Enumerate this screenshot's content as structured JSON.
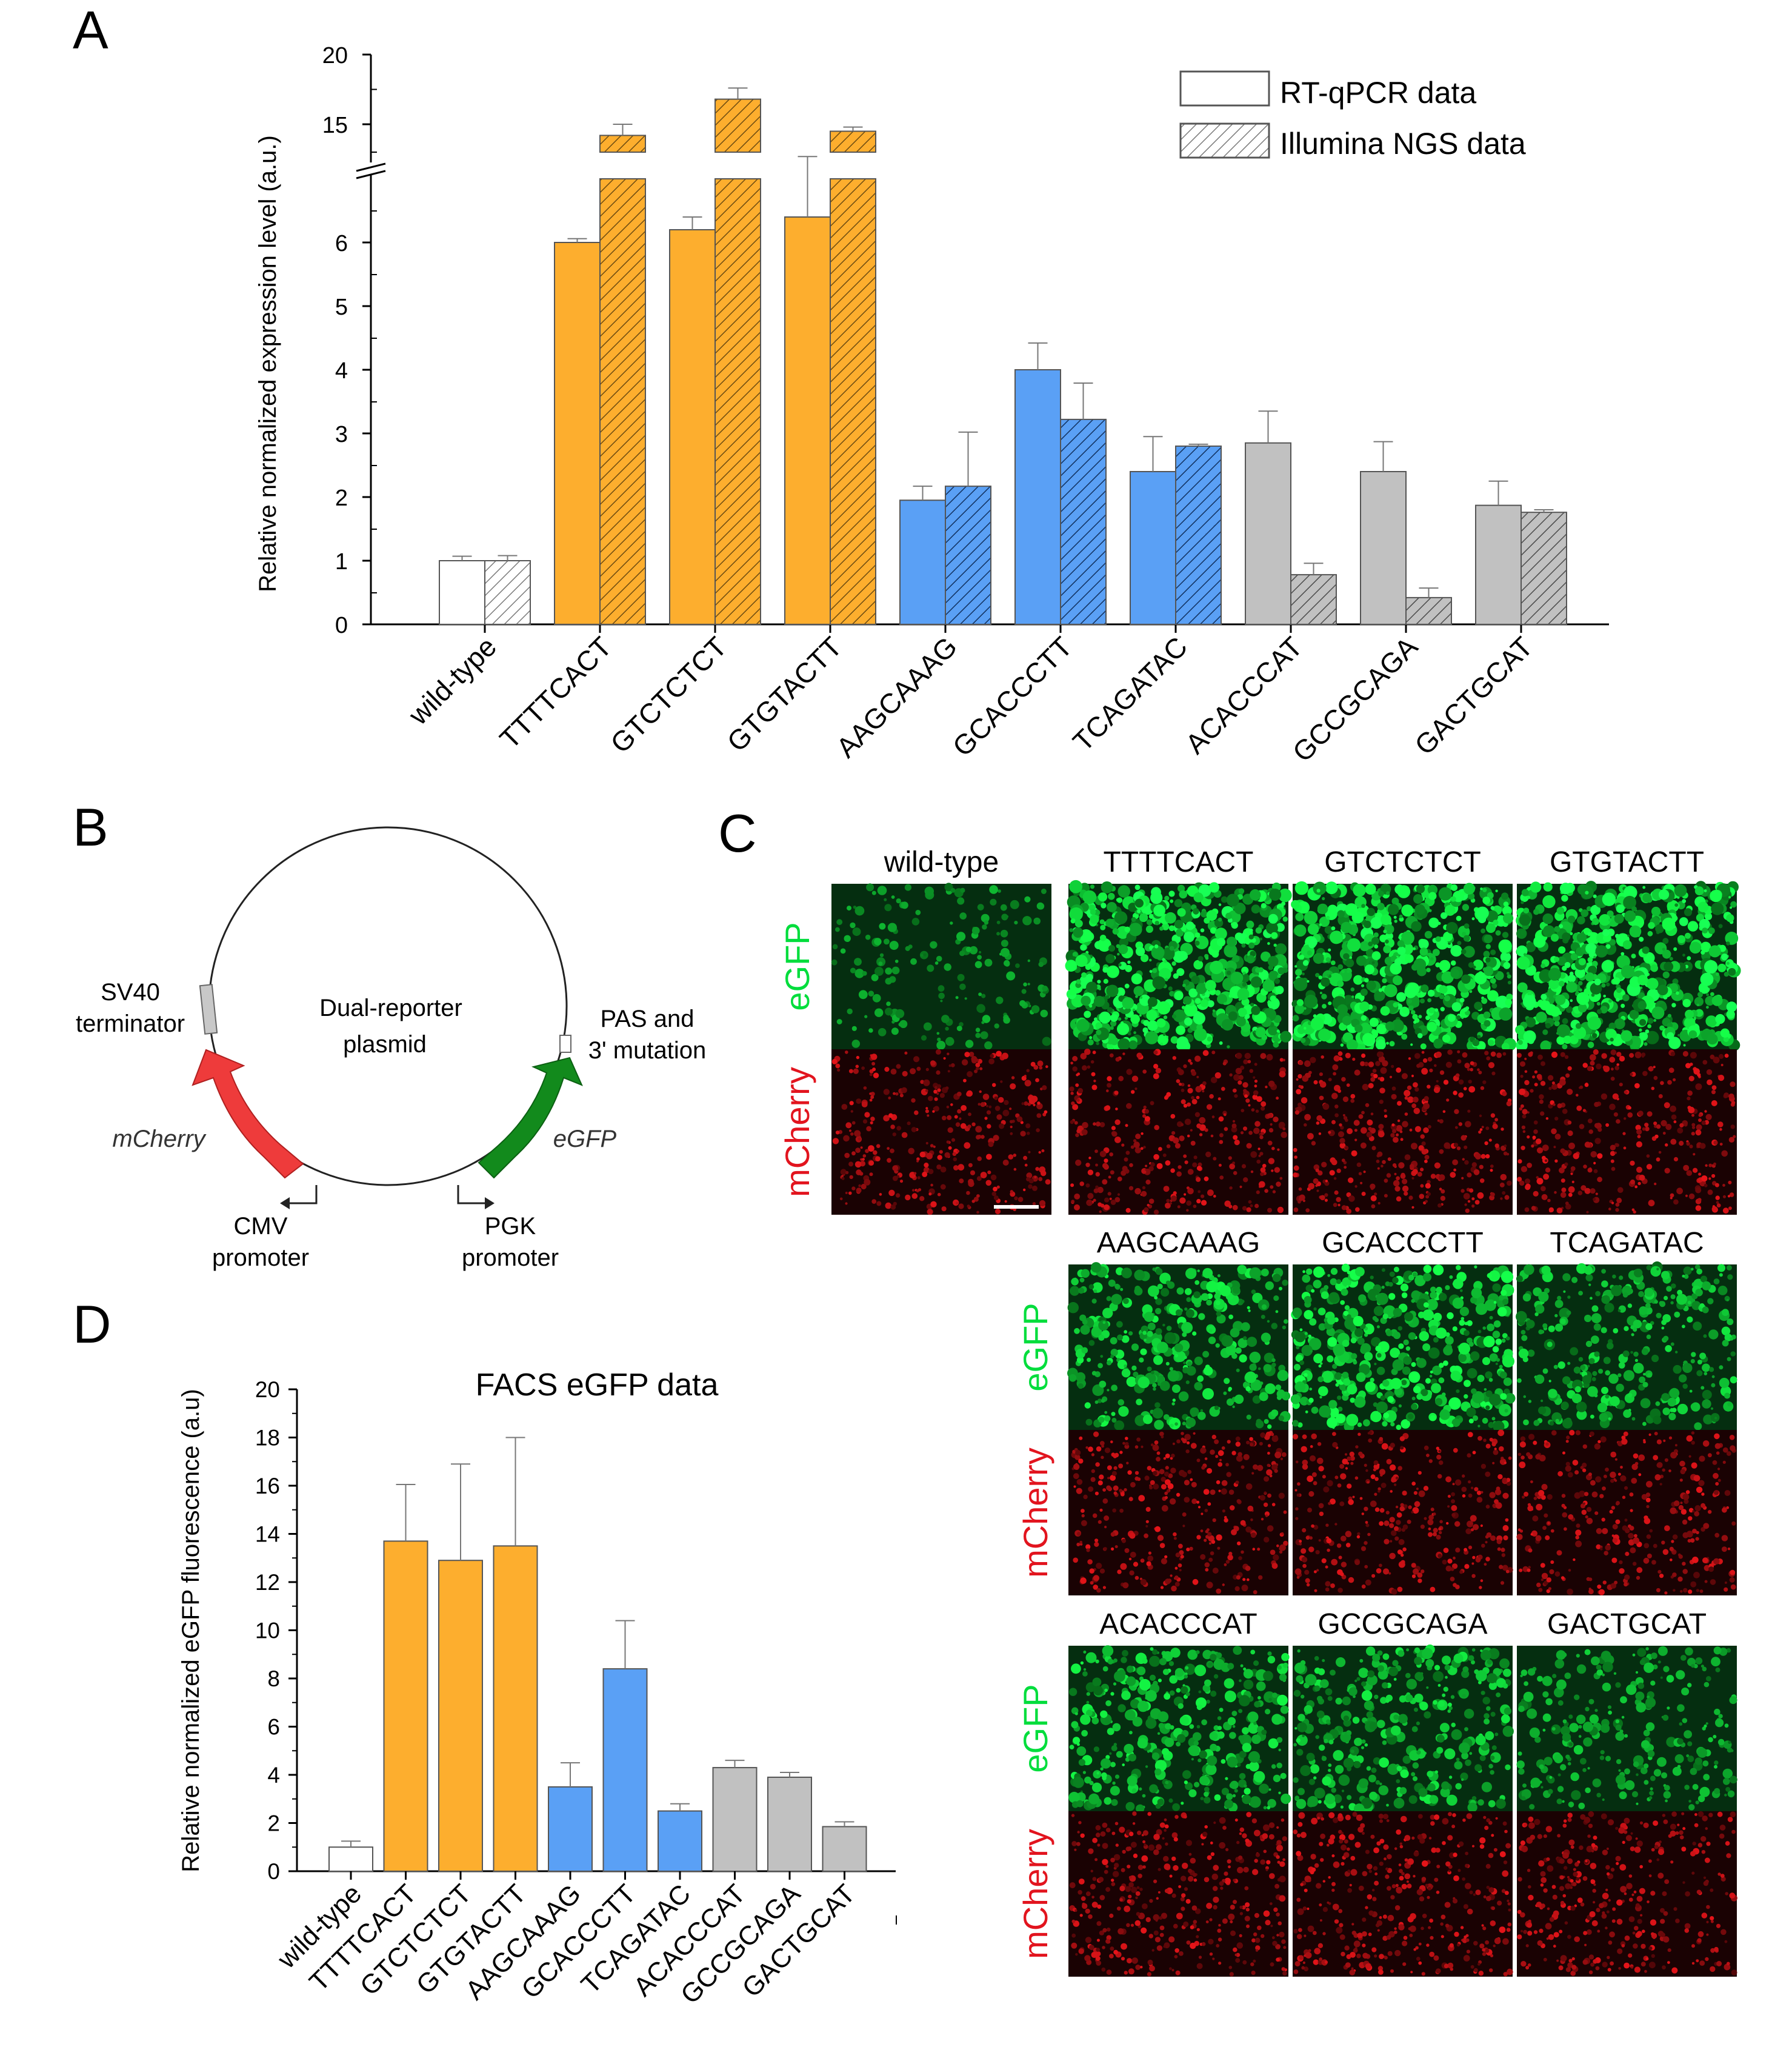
{
  "colors": {
    "wild": "#ffffff",
    "orange": "#fdae2e",
    "blue": "#5aa0f5",
    "gray": "#c1c1c1",
    "green_channel": "#00dd3c",
    "red_channel": "#e2141e",
    "plasmid_red": "#ee3b3b",
    "plasmid_green": "#128a1c"
  },
  "chart_data": [
    {
      "panel": "A",
      "type": "bar",
      "ylabel": "Relative normalized expression level (a.u.)",
      "axis_break": {
        "lower": [
          0,
          7
        ],
        "upper": [
          13,
          20
        ]
      },
      "ylim": [
        0,
        20
      ],
      "ticks_lower": [
        0,
        1,
        2,
        3,
        4,
        5,
        6
      ],
      "ticks_upper": [
        15,
        20
      ],
      "categories": [
        "wild-type",
        "TTTTCACT",
        "GTCTCTCT",
        "GTGTACTT",
        "AAGCAAAG",
        "GCACCCTT",
        "TCAGATAC",
        "ACACCCAT",
        "GCCGCAGA",
        "GACTGCAT"
      ],
      "category_colors": [
        "wild",
        "orange",
        "orange",
        "orange",
        "blue",
        "blue",
        "blue",
        "gray",
        "gray",
        "gray"
      ],
      "series": [
        {
          "name": "RT-qPCR data",
          "pattern": "solid",
          "values": [
            1.0,
            6.0,
            6.2,
            6.4,
            1.95,
            4.0,
            2.4,
            2.85,
            2.4,
            1.87
          ],
          "errors": [
            0.07,
            0.06,
            0.2,
            0.95,
            0.22,
            0.42,
            0.55,
            0.5,
            0.47,
            0.38
          ]
        },
        {
          "name": "Illumina NGS data",
          "pattern": "hatched",
          "values": [
            1.0,
            14.2,
            16.8,
            14.5,
            2.17,
            3.22,
            2.8,
            0.78,
            0.42,
            1.76
          ],
          "errors": [
            0.08,
            0.8,
            0.8,
            0.3,
            0.85,
            0.57,
            0.03,
            0.18,
            0.15,
            0.04
          ]
        }
      ],
      "legend": {
        "position": "top-right",
        "entries": [
          "RT-qPCR data",
          "Illumina NGS data"
        ]
      }
    },
    {
      "panel": "D",
      "type": "bar",
      "title": "FACS eGFP data",
      "ylabel": "Relative normalized eGFP fluorescence (a.u)",
      "ylim": [
        0,
        20
      ],
      "ticks": [
        0,
        2,
        4,
        6,
        8,
        10,
        12,
        14,
        16,
        18,
        20
      ],
      "categories": [
        "wild-type",
        "TTTTCACT",
        "GTCTCTCT",
        "GTGTACTT",
        "AAGCAAAG",
        "GCACCCTT",
        "TCAGATAC",
        "ACACCCAT",
        "GCCGCAGA",
        "GACTGCAT"
      ],
      "category_colors": [
        "wild",
        "orange",
        "orange",
        "orange",
        "blue",
        "blue",
        "blue",
        "gray",
        "gray",
        "gray"
      ],
      "values": [
        1.0,
        13.7,
        12.9,
        13.5,
        3.5,
        8.4,
        2.5,
        4.3,
        3.9,
        1.85
      ],
      "errors": [
        0.25,
        2.35,
        4.0,
        4.5,
        1.0,
        2.0,
        0.3,
        0.3,
        0.2,
        0.2
      ]
    }
  ],
  "panel_labels": {
    "a": "A",
    "b": "B",
    "c": "C",
    "d": "D"
  },
  "plasmid": {
    "center_text_1": "Dual-reporter",
    "center_text_2": "plasmid",
    "sv40_1": "SV40",
    "sv40_2": "terminator",
    "pas_1": "PAS and",
    "pas_2": "3' mutation",
    "mcherry": "mCherry",
    "egfp": "eGFP",
    "cmv_1": "CMV",
    "cmv_2": "promoter",
    "pgk_1": "PGK",
    "pgk_2": "promoter"
  },
  "microscopy": {
    "channel_green": "eGFP",
    "channel_red": "mCherry",
    "rows": [
      [
        "wild-type",
        "TTTTCACT",
        "GTCTCTCT",
        "GTGTACTT"
      ],
      [
        "AAGCAAAG",
        "GCACCCTT",
        "TCAGATAC"
      ],
      [
        "ACACCCAT",
        "GCCGCAGA",
        "GACTGCAT"
      ]
    ],
    "brightness_green": [
      [
        0.12,
        0.95,
        0.95,
        0.95
      ],
      [
        0.55,
        0.7,
        0.45
      ],
      [
        0.55,
        0.5,
        0.3
      ]
    ],
    "brightness_red": [
      [
        0.5,
        0.5,
        0.55,
        0.5
      ],
      [
        0.5,
        0.45,
        0.45
      ],
      [
        0.5,
        0.5,
        0.45
      ]
    ]
  }
}
